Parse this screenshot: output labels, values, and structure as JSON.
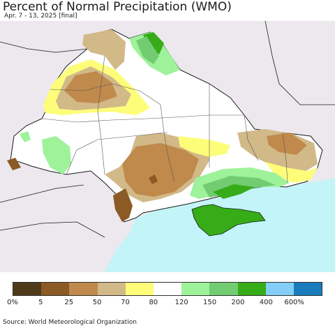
{
  "header": {
    "title": "Percent of Normal Precipitation (WMO)",
    "subtitle": "Apr. 7 - 13, 2025 [final]"
  },
  "legend": {
    "bins": [
      {
        "label": "0%",
        "color": "#4f3a1a"
      },
      {
        "label": "5",
        "color": "#8c5a24"
      },
      {
        "label": "25",
        "color": "#c08a4c"
      },
      {
        "label": "50",
        "color": "#d2b988"
      },
      {
        "label": "70",
        "color": "#fdfd7a"
      },
      {
        "label": "80",
        "color": "#ffffff"
      },
      {
        "label": "120",
        "color": "#9ef29a"
      },
      {
        "label": "150",
        "color": "#72cc72"
      },
      {
        "label": "200",
        "color": "#36ac18"
      },
      {
        "label": "400",
        "color": "#84cef8"
      },
      {
        "label": "600%",
        "color": "#1a7cbc"
      }
    ]
  },
  "map": {
    "sea_color": "#c3f4f8",
    "foreign_land_color": "#ece8ee",
    "no_data_land_color": "#ffffff",
    "border_color": "#1a1a1a"
  },
  "footer": {
    "source": "Source: World Meteorological Organization"
  }
}
